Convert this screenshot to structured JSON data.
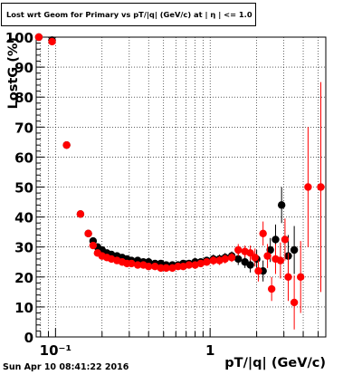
{
  "chart_data": {
    "type": "scatter",
    "title": "Lost wrt Geom for Primary vs pT/|q| (GeV/c) at | η | <= 1.0",
    "xlabel": "pT/|q| (GeV/c)",
    "ylabel": "LostG (%)",
    "x_scale": "log",
    "xlim": [
      0.075,
      5.6
    ],
    "ylim": [
      0,
      100
    ],
    "x_tick_labels": [
      "10⁻¹",
      "1"
    ],
    "y_ticks": [
      0,
      10,
      20,
      30,
      40,
      50,
      60,
      70,
      80,
      90,
      100
    ],
    "grid": true,
    "series": [
      {
        "color": "#000000",
        "x": [
          0.078,
          0.095,
          0.118,
          0.145,
          0.163,
          0.175,
          0.187,
          0.2,
          0.215,
          0.23,
          0.25,
          0.27,
          0.29,
          0.31,
          0.34,
          0.37,
          0.4,
          0.44,
          0.48,
          0.52,
          0.57,
          0.62,
          0.67,
          0.73,
          0.8,
          0.87,
          0.95,
          1.05,
          1.15,
          1.25,
          1.38,
          1.52,
          1.68,
          1.82,
          2.0,
          2.2,
          2.45,
          2.65,
          2.9,
          3.2,
          3.5
        ],
        "y": [
          100,
          99,
          64,
          41,
          34.5,
          32,
          30,
          29,
          28,
          27.5,
          27,
          26.5,
          26,
          25.5,
          25.5,
          25,
          25,
          24.5,
          24.5,
          24,
          24,
          24,
          24.5,
          24.5,
          25,
          25,
          25.5,
          26,
          26,
          26.5,
          27,
          26,
          25,
          24,
          26,
          22,
          29,
          32.5,
          44,
          27,
          29
        ],
        "y_err": [
          0.5,
          0.6,
          1,
          1,
          1,
          1,
          1,
          1,
          1,
          1,
          1,
          1,
          1,
          1,
          1,
          1,
          1,
          1,
          1,
          1,
          1,
          1,
          1,
          1,
          1,
          1.2,
          1.2,
          1.5,
          1.5,
          1.5,
          1.5,
          2,
          2,
          2.5,
          3,
          3.5,
          4,
          5,
          6,
          7,
          8
        ]
      },
      {
        "color": "#ff0000",
        "x": [
          0.078,
          0.095,
          0.118,
          0.145,
          0.163,
          0.175,
          0.187,
          0.2,
          0.215,
          0.23,
          0.25,
          0.27,
          0.29,
          0.31,
          0.34,
          0.37,
          0.4,
          0.44,
          0.48,
          0.52,
          0.57,
          0.62,
          0.67,
          0.73,
          0.8,
          0.87,
          0.95,
          1.05,
          1.15,
          1.25,
          1.38,
          1.52,
          1.68,
          1.82,
          1.95,
          2.05,
          2.2,
          2.35,
          2.5,
          2.65,
          2.85,
          3.05,
          3.2,
          3.5,
          3.85,
          4.3,
          5.2
        ],
        "y": [
          100,
          98.5,
          64,
          41,
          34.5,
          30.5,
          28,
          27,
          26.5,
          26,
          25.5,
          25,
          24.5,
          24.5,
          24,
          24,
          23.5,
          23.5,
          23,
          23,
          23,
          23.5,
          23.5,
          24,
          24,
          24.5,
          25,
          25.5,
          25.5,
          26,
          26.5,
          29,
          28.5,
          28,
          26.5,
          22,
          34.5,
          27,
          16,
          26,
          25.5,
          32.5,
          20,
          11.5,
          20,
          50,
          50
        ],
        "y_err": [
          0.5,
          0.6,
          1,
          1,
          1,
          1,
          1,
          1,
          1,
          1,
          1,
          1,
          1,
          1,
          1,
          1,
          1,
          1,
          1,
          1,
          1,
          1,
          1,
          1,
          1,
          1.2,
          1.2,
          1.5,
          1.5,
          1.5,
          1.5,
          2,
          2,
          2.5,
          3,
          3.5,
          4,
          4,
          4,
          5,
          6,
          7,
          8,
          9,
          12,
          20,
          35
        ]
      }
    ]
  },
  "footer": "Sun Apr 10 08:41:22 2016"
}
